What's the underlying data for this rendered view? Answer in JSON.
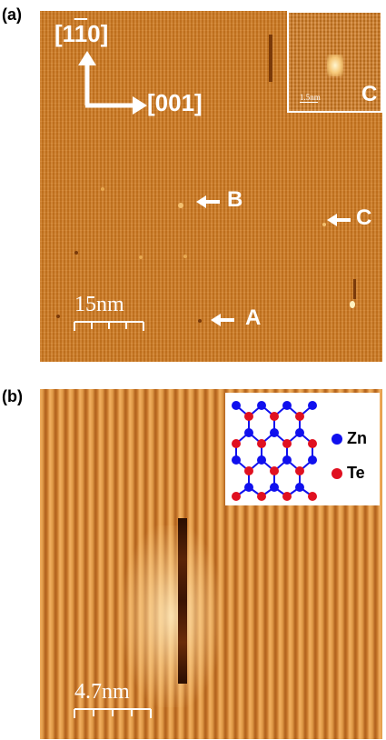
{
  "panel_a": {
    "label": "(a)",
    "direction_up": "[1̅1̅0]",
    "direction_up_parts": [
      "[1",
      "1",
      "0]"
    ],
    "direction_right": "[001]",
    "scale_label": "15nm",
    "inset_label": "C",
    "inset_scale": "1.5nm",
    "defects": [
      {
        "label": "A"
      },
      {
        "label": "B"
      },
      {
        "label": "C"
      }
    ]
  },
  "panel_b": {
    "label": "(b)",
    "scale_label": "4.7nm",
    "legend": {
      "zn_label": "Zn",
      "te_label": "Te",
      "zn_color": "#1010ee",
      "te_color": "#e01020"
    }
  },
  "colors": {
    "stm_base": "#d07a20",
    "highlight": "#ffe6b0"
  }
}
